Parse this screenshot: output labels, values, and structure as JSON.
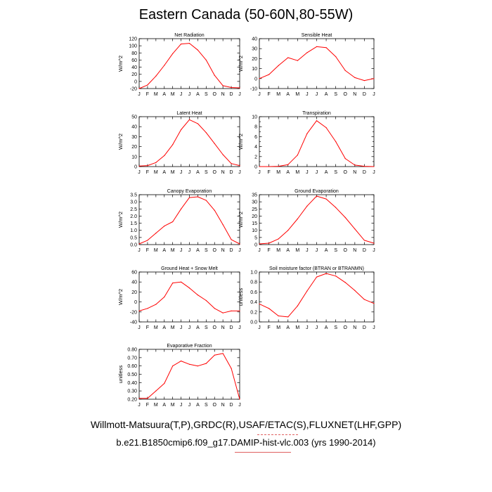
{
  "page": {
    "title": "Eastern Canada (50-60N,80-55W)",
    "footer_line1": "Willmott-Matsuura(T,P),GRDC(R),USAF/ETAC(S),FLUXNET(LHF,GPP)",
    "footer_line2": "b.e21.B1850cmip6.f09_g17.DAMIP-hist-vlc.003 (yrs 1990-2014)"
  },
  "colors": {
    "line": "#ff0000",
    "axis": "#000000",
    "accent_underline": "#e06060"
  },
  "chart_data": [
    {
      "type": "line",
      "title": "Net Radiation",
      "ylabel": "W/m^2",
      "categories": [
        "J",
        "F",
        "M",
        "A",
        "M",
        "J",
        "J",
        "A",
        "S",
        "O",
        "N",
        "D",
        "J"
      ],
      "series": [
        {
          "values": [
            -20,
            -10,
            15,
            45,
            78,
            105,
            107,
            88,
            60,
            17,
            -12,
            -17,
            -18
          ]
        }
      ],
      "ylim": [
        -20,
        120
      ],
      "yticks": [
        -20,
        0,
        20,
        40,
        60,
        80,
        100,
        120
      ],
      "ytick_labels": [
        "-20",
        "0",
        "20",
        "40",
        "60",
        "80",
        "100",
        "120"
      ],
      "grid": false
    },
    {
      "type": "line",
      "title": "Sensible Heat",
      "ylabel": "W/m^2",
      "categories": [
        "J",
        "F",
        "M",
        "A",
        "M",
        "J",
        "J",
        "A",
        "S",
        "O",
        "N",
        "D",
        "J"
      ],
      "series": [
        {
          "values": [
            0,
            4,
            13,
            21,
            18,
            26,
            32,
            31,
            22,
            8,
            1,
            -2,
            0
          ]
        }
      ],
      "ylim": [
        -10,
        40
      ],
      "yticks": [
        -10,
        0,
        10,
        20,
        30,
        40
      ],
      "ytick_labels": [
        "-10",
        "0",
        "10",
        "20",
        "30",
        "40"
      ],
      "grid": false
    },
    {
      "type": "line",
      "title": "Latent Heat",
      "ylabel": "W/m^2",
      "categories": [
        "J",
        "F",
        "M",
        "A",
        "M",
        "J",
        "J",
        "A",
        "S",
        "O",
        "N",
        "D",
        "J"
      ],
      "series": [
        {
          "values": [
            0.5,
            1,
            4,
            11,
            22,
            37,
            47,
            43,
            34,
            23,
            12,
            3,
            1
          ]
        }
      ],
      "ylim": [
        0,
        50
      ],
      "yticks": [
        0,
        10,
        20,
        30,
        40,
        50
      ],
      "ytick_labels": [
        "0",
        "10",
        "20",
        "30",
        "40",
        "50"
      ],
      "grid": false
    },
    {
      "type": "line",
      "title": "Transpiration",
      "ylabel": "W/m^2",
      "categories": [
        "J",
        "F",
        "M",
        "A",
        "M",
        "J",
        "J",
        "A",
        "S",
        "O",
        "N",
        "D",
        "J"
      ],
      "series": [
        {
          "values": [
            0,
            0,
            0.05,
            0.4,
            2.3,
            6.6,
            9.2,
            7.8,
            5,
            1.6,
            0.3,
            0.05,
            0
          ]
        }
      ],
      "ylim": [
        0,
        10
      ],
      "yticks": [
        0,
        1,
        2,
        3,
        4,
        5,
        6,
        7,
        8,
        9,
        10
      ],
      "ytick_labels": [
        "0",
        "",
        "2",
        "",
        "4",
        "",
        "6",
        "",
        "8",
        "",
        "10"
      ],
      "grid": false
    },
    {
      "type": "line",
      "title": "Canopy Evaporation",
      "ylabel": "W/m^2",
      "categories": [
        "J",
        "F",
        "M",
        "A",
        "M",
        "J",
        "J",
        "A",
        "S",
        "O",
        "N",
        "D",
        "J"
      ],
      "series": [
        {
          "values": [
            0.05,
            0.3,
            0.8,
            1.3,
            1.6,
            2.5,
            3.3,
            3.35,
            3.1,
            2.4,
            1.4,
            0.35,
            0.05
          ]
        }
      ],
      "ylim": [
        0,
        3.5
      ],
      "yticks": [
        0,
        0.5,
        1,
        1.5,
        2,
        2.5,
        3,
        3.5
      ],
      "ytick_labels": [
        "0.0",
        "0.5",
        "1.0",
        "1.5",
        "2.0",
        "2.5",
        "3.0",
        "3.5"
      ],
      "grid": false
    },
    {
      "type": "line",
      "title": "Ground Evaporation",
      "ylabel": "W/m^2",
      "categories": [
        "J",
        "F",
        "M",
        "A",
        "M",
        "J",
        "J",
        "A",
        "S",
        "O",
        "N",
        "D",
        "J"
      ],
      "series": [
        {
          "values": [
            0.5,
            1,
            4,
            10,
            18,
            27,
            34,
            32,
            26,
            19,
            11,
            3,
            1
          ]
        }
      ],
      "ylim": [
        0,
        35
      ],
      "yticks": [
        0,
        5,
        10,
        15,
        20,
        25,
        30,
        35
      ],
      "ytick_labels": [
        "0",
        "5",
        "10",
        "15",
        "20",
        "25",
        "30",
        "35"
      ],
      "grid": false
    },
    {
      "type": "line",
      "title": "Ground Heat + Snow Melt",
      "ylabel": "W/m^2",
      "categories": [
        "J",
        "F",
        "M",
        "A",
        "M",
        "J",
        "J",
        "A",
        "S",
        "O",
        "N",
        "D",
        "J"
      ],
      "series": [
        {
          "values": [
            -18,
            -13,
            -5,
            10,
            38,
            40,
            28,
            14,
            3,
            -13,
            -22,
            -18,
            -18
          ]
        }
      ],
      "ylim": [
        -40,
        60
      ],
      "yticks": [
        -40,
        -20,
        0,
        20,
        40,
        60
      ],
      "ytick_labels": [
        "-40",
        "-20",
        "0",
        "20",
        "40",
        "60"
      ],
      "grid": false
    },
    {
      "type": "line",
      "title": "Soil moisture factor (BTRAN or BTRANMN)",
      "ylabel": "unitless",
      "categories": [
        "J",
        "F",
        "M",
        "A",
        "M",
        "J",
        "J",
        "A",
        "S",
        "O",
        "N",
        "D",
        "J"
      ],
      "series": [
        {
          "values": [
            0.36,
            0.27,
            0.12,
            0.1,
            0.32,
            0.62,
            0.9,
            0.97,
            0.92,
            0.79,
            0.63,
            0.45,
            0.37
          ]
        }
      ],
      "ylim": [
        0,
        1
      ],
      "yticks": [
        0,
        0.2,
        0.4,
        0.6,
        0.8,
        1
      ],
      "ytick_labels": [
        "0.0",
        "0.2",
        "0.4",
        "0.6",
        "0.8",
        "1.0"
      ],
      "grid": false
    },
    {
      "type": "line",
      "title": "Evaporative Fraction",
      "ylabel": "unitless",
      "categories": [
        "J",
        "F",
        "M",
        "A",
        "M",
        "J",
        "J",
        "A",
        "S",
        "O",
        "N",
        "D",
        "J"
      ],
      "series": [
        {
          "values": [
            0.21,
            0.21,
            0.3,
            0.39,
            0.6,
            0.66,
            0.62,
            0.6,
            0.63,
            0.73,
            0.75,
            0.57,
            0.2
          ]
        }
      ],
      "ylim": [
        0.2,
        0.8
      ],
      "yticks": [
        0.2,
        0.3,
        0.4,
        0.5,
        0.6,
        0.7,
        0.8
      ],
      "ytick_labels": [
        "0.20",
        "0.30",
        "0.40",
        "0.50",
        "0.60",
        "0.70",
        "0.80"
      ],
      "grid": false
    }
  ]
}
